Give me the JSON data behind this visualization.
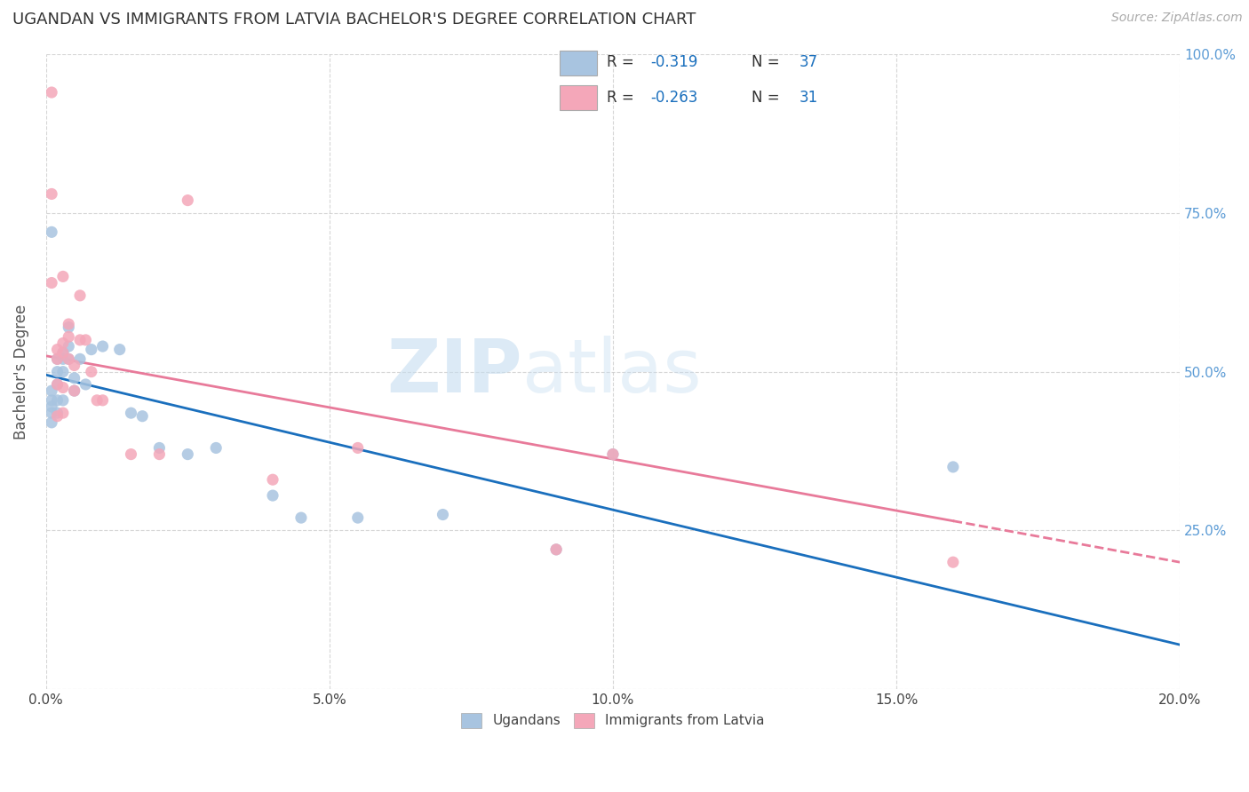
{
  "title": "UGANDAN VS IMMIGRANTS FROM LATVIA BACHELOR'S DEGREE CORRELATION CHART",
  "source": "Source: ZipAtlas.com",
  "ylabel": "Bachelor's Degree",
  "xlim": [
    0.0,
    0.2
  ],
  "ylim": [
    0.0,
    1.0
  ],
  "ugandan_color": "#a8c4e0",
  "latvia_color": "#f4a7b9",
  "trend_ugandan_color": "#1a6fbd",
  "trend_latvia_color": "#e87a9a",
  "watermark_zip": "ZIP",
  "watermark_atlas": "atlas",
  "ugandan_x": [
    0.001,
    0.001,
    0.001,
    0.001,
    0.001,
    0.002,
    0.002,
    0.002,
    0.002,
    0.002,
    0.003,
    0.003,
    0.003,
    0.003,
    0.004,
    0.004,
    0.004,
    0.005,
    0.005,
    0.006,
    0.007,
    0.008,
    0.01,
    0.013,
    0.015,
    0.017,
    0.02,
    0.025,
    0.03,
    0.04,
    0.045,
    0.055,
    0.07,
    0.09,
    0.1,
    0.16,
    0.001
  ],
  "ugandan_y": [
    0.455,
    0.47,
    0.445,
    0.435,
    0.42,
    0.52,
    0.5,
    0.48,
    0.455,
    0.435,
    0.53,
    0.52,
    0.5,
    0.455,
    0.57,
    0.54,
    0.52,
    0.49,
    0.47,
    0.52,
    0.48,
    0.535,
    0.54,
    0.535,
    0.435,
    0.43,
    0.38,
    0.37,
    0.38,
    0.305,
    0.27,
    0.27,
    0.275,
    0.22,
    0.37,
    0.35,
    0.72
  ],
  "latvia_x": [
    0.001,
    0.001,
    0.002,
    0.002,
    0.002,
    0.002,
    0.003,
    0.003,
    0.003,
    0.003,
    0.004,
    0.004,
    0.004,
    0.005,
    0.005,
    0.006,
    0.007,
    0.008,
    0.009,
    0.01,
    0.015,
    0.02,
    0.025,
    0.04,
    0.055,
    0.09,
    0.1,
    0.16,
    0.001,
    0.003,
    0.006
  ],
  "latvia_y": [
    0.94,
    0.78,
    0.535,
    0.52,
    0.48,
    0.43,
    0.545,
    0.53,
    0.475,
    0.435,
    0.575,
    0.555,
    0.52,
    0.51,
    0.47,
    0.55,
    0.55,
    0.5,
    0.455,
    0.455,
    0.37,
    0.37,
    0.77,
    0.33,
    0.38,
    0.22,
    0.37,
    0.2,
    0.64,
    0.65,
    0.62
  ],
  "trend_u_x0": 0.0,
  "trend_u_y0": 0.495,
  "trend_u_x1": 0.2,
  "trend_u_y1": 0.07,
  "trend_l_x0": 0.0,
  "trend_l_y0": 0.525,
  "trend_l_x1": 0.16,
  "trend_l_y1": 0.265,
  "trend_l_dash_x0": 0.16,
  "trend_l_dash_y0": 0.265,
  "trend_l_dash_x1": 0.2,
  "trend_l_dash_y1": 0.2
}
